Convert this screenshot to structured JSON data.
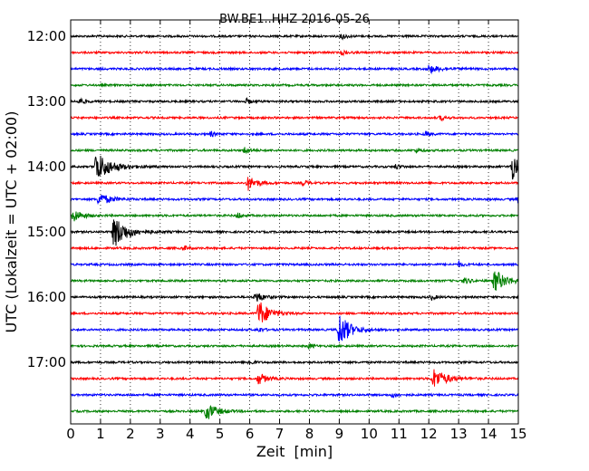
{
  "chart_data": {
    "type": "line",
    "title": "BW.BE1..HHZ 2016-05-26",
    "xlabel": "Zeit  [min]",
    "ylabel": "UTC (Lokalzeit = UTC + 02:00)",
    "xlim": [
      0,
      15
    ],
    "x_ticks": [
      "0",
      "1",
      "2",
      "3",
      "4",
      "5",
      "6",
      "7",
      "8",
      "9",
      "10",
      "11",
      "12",
      "13",
      "14",
      "15"
    ],
    "y_tick_labels": [
      "12:00",
      "13:00",
      "14:00",
      "15:00",
      "16:00",
      "17:00"
    ],
    "grid": "vertical dotted",
    "colors": [
      "#000000",
      "#ff0000",
      "#0000ff",
      "#008000"
    ],
    "traces": [
      {
        "time": "12:00",
        "color": "#000000",
        "events": [
          {
            "t": 9.1,
            "a": 0.25,
            "d": 0.3
          }
        ]
      },
      {
        "time": "12:15",
        "color": "#ff0000",
        "events": [
          {
            "t": 9.1,
            "a": 0.2,
            "d": 0.3
          }
        ]
      },
      {
        "time": "12:30",
        "color": "#0000ff",
        "events": [
          {
            "t": 12.0,
            "a": 0.3,
            "d": 0.8
          }
        ]
      },
      {
        "time": "12:45",
        "color": "#008000",
        "events": []
      },
      {
        "time": "13:00",
        "color": "#000000",
        "events": [
          {
            "t": 0.3,
            "a": 0.3,
            "d": 0.3
          },
          {
            "t": 5.9,
            "a": 0.2,
            "d": 0.3
          }
        ]
      },
      {
        "time": "13:15",
        "color": "#ff0000",
        "events": [
          {
            "t": 12.4,
            "a": 0.2,
            "d": 0.3
          }
        ]
      },
      {
        "time": "13:30",
        "color": "#0000ff",
        "events": [
          {
            "t": 4.7,
            "a": 0.2,
            "d": 0.3
          },
          {
            "t": 11.9,
            "a": 0.2,
            "d": 0.3
          }
        ]
      },
      {
        "time": "13:45",
        "color": "#008000",
        "events": [
          {
            "t": 5.85,
            "a": 0.35,
            "d": 0.3
          },
          {
            "t": 11.6,
            "a": 0.2,
            "d": 0.3
          }
        ]
      },
      {
        "time": "14:00",
        "color": "#000000",
        "events": [
          {
            "t": 0.85,
            "a": 1.2,
            "d": 1.0
          },
          {
            "t": 14.8,
            "a": 1.0,
            "d": 0.6
          },
          {
            "t": 10.9,
            "a": 0.2,
            "d": 0.3
          }
        ]
      },
      {
        "time": "14:15",
        "color": "#ff0000",
        "events": [
          {
            "t": 5.95,
            "a": 0.55,
            "d": 0.6
          },
          {
            "t": 7.8,
            "a": 0.25,
            "d": 0.3
          }
        ]
      },
      {
        "time": "14:30",
        "color": "#0000ff",
        "events": [
          {
            "t": 0.95,
            "a": 0.55,
            "d": 0.7
          },
          {
            "t": 15.0,
            "a": 0.25,
            "d": 0.1
          }
        ]
      },
      {
        "time": "14:45",
        "color": "#008000",
        "events": [
          {
            "t": 0.1,
            "a": 0.5,
            "d": 0.6
          },
          {
            "t": 5.6,
            "a": 0.25,
            "d": 0.3
          }
        ]
      },
      {
        "time": "15:00",
        "color": "#000000",
        "events": [
          {
            "t": 1.45,
            "a": 1.3,
            "d": 0.9
          }
        ]
      },
      {
        "time": "15:15",
        "color": "#ff0000",
        "events": [
          {
            "t": 3.8,
            "a": 0.2,
            "d": 0.3
          }
        ]
      },
      {
        "time": "15:30",
        "color": "#0000ff",
        "events": [
          {
            "t": 13.0,
            "a": 0.2,
            "d": 0.3
          }
        ]
      },
      {
        "time": "15:45",
        "color": "#008000",
        "events": [
          {
            "t": 14.2,
            "a": 0.9,
            "d": 0.8
          },
          {
            "t": 13.2,
            "a": 0.25,
            "d": 0.4
          }
        ]
      },
      {
        "time": "16:00",
        "color": "#000000",
        "events": [
          {
            "t": 6.2,
            "a": 0.45,
            "d": 0.5
          },
          {
            "t": 12.1,
            "a": 0.2,
            "d": 0.3
          }
        ]
      },
      {
        "time": "16:15",
        "color": "#ff0000",
        "events": [
          {
            "t": 6.3,
            "a": 1.1,
            "d": 0.7
          }
        ]
      },
      {
        "time": "16:30",
        "color": "#0000ff",
        "events": [
          {
            "t": 9.0,
            "a": 1.4,
            "d": 0.7
          },
          {
            "t": 6.3,
            "a": 0.2,
            "d": 0.3
          }
        ]
      },
      {
        "time": "16:45",
        "color": "#008000",
        "events": [
          {
            "t": 8.0,
            "a": 0.2,
            "d": 0.3
          }
        ]
      },
      {
        "time": "17:00",
        "color": "#000000",
        "events": [
          {
            "t": 6.0,
            "a": 0.2,
            "d": 0.3
          }
        ]
      },
      {
        "time": "17:15",
        "color": "#ff0000",
        "events": [
          {
            "t": 6.3,
            "a": 0.5,
            "d": 0.5
          },
          {
            "t": 12.15,
            "a": 0.8,
            "d": 0.9
          }
        ]
      },
      {
        "time": "17:30",
        "color": "#0000ff",
        "events": [
          {
            "t": 10.8,
            "a": 0.2,
            "d": 0.3
          }
        ]
      },
      {
        "time": "17:45",
        "color": "#008000",
        "events": [
          {
            "t": 4.55,
            "a": 0.7,
            "d": 0.7
          }
        ]
      }
    ]
  }
}
